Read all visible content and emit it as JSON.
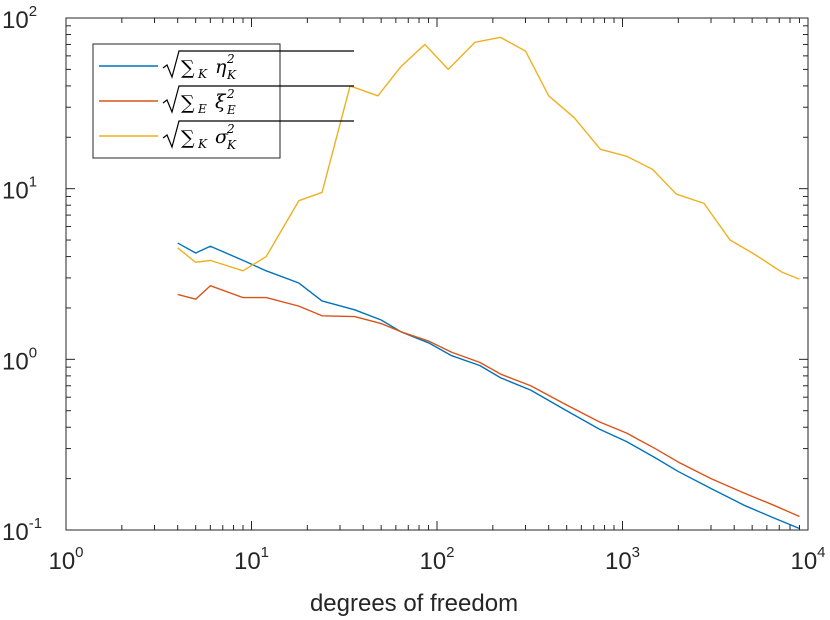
{
  "chart_data": {
    "type": "line",
    "xscale": "log",
    "yscale": "log",
    "xlim": [
      1,
      10000
    ],
    "ylim": [
      0.1,
      100
    ],
    "xlabel": "degrees of freedom",
    "ylabel": "",
    "title": "",
    "grid": false,
    "legend_position": "top-left",
    "x_ticks": [
      {
        "base": "10",
        "exp": "0",
        "value": 1
      },
      {
        "base": "10",
        "exp": "1",
        "value": 10
      },
      {
        "base": "10",
        "exp": "2",
        "value": 100
      },
      {
        "base": "10",
        "exp": "3",
        "value": 1000
      },
      {
        "base": "10",
        "exp": "4",
        "value": 10000
      }
    ],
    "y_ticks": [
      {
        "base": "10",
        "exp": "-1",
        "value": 0.1
      },
      {
        "base": "10",
        "exp": "0",
        "value": 1
      },
      {
        "base": "10",
        "exp": "1",
        "value": 10
      },
      {
        "base": "10",
        "exp": "2",
        "value": 100
      }
    ],
    "series": [
      {
        "name": "√Σ_K η_K²",
        "legend": {
          "sum_sub": "K",
          "var": "η",
          "var_sub": "K",
          "var_sup": "2"
        },
        "color": "#0072BD",
        "x": [
          4,
          5,
          6,
          9,
          12,
          18,
          24,
          36,
          50,
          64,
          90,
          120,
          170,
          220,
          320,
          500,
          750,
          1050,
          1500,
          2000,
          3000,
          4500,
          6500,
          9000
        ],
        "y": [
          4.8,
          4.2,
          4.6,
          3.8,
          3.3,
          2.8,
          2.2,
          1.95,
          1.7,
          1.45,
          1.25,
          1.05,
          0.92,
          0.78,
          0.66,
          0.5,
          0.39,
          0.33,
          0.265,
          0.22,
          0.175,
          0.14,
          0.118,
          0.102
        ]
      },
      {
        "name": "√Σ_E ξ_E²",
        "legend": {
          "sum_sub": "E",
          "var": "ξ",
          "var_sub": "E",
          "var_sup": "2"
        },
        "color": "#D95319",
        "x": [
          4,
          5,
          6,
          9,
          12,
          18,
          24,
          36,
          50,
          64,
          90,
          120,
          170,
          220,
          320,
          500,
          750,
          1050,
          1500,
          2000,
          3000,
          4500,
          6500,
          9000
        ],
        "y": [
          2.4,
          2.25,
          2.7,
          2.3,
          2.3,
          2.05,
          1.8,
          1.78,
          1.62,
          1.45,
          1.28,
          1.1,
          0.96,
          0.82,
          0.7,
          0.54,
          0.43,
          0.37,
          0.3,
          0.25,
          0.2,
          0.165,
          0.14,
          0.12
        ]
      },
      {
        "name": "√Σ_K σ_K²",
        "legend": {
          "sum_sub": "K",
          "var": "σ",
          "var_sub": "K",
          "var_sup": "2"
        },
        "color": "#EDB120",
        "x": [
          4,
          5,
          6,
          9,
          12,
          18,
          24,
          34,
          48,
          64,
          86,
          115,
          160,
          220,
          300,
          400,
          550,
          760,
          1050,
          1450,
          1950,
          2750,
          3800,
          5200,
          7200,
          9000
        ],
        "y": [
          4.5,
          3.7,
          3.8,
          3.3,
          4.0,
          8.5,
          9.5,
          40,
          35,
          52,
          70,
          50,
          72,
          77,
          64,
          35,
          26,
          17,
          15.5,
          13,
          9.3,
          8.2,
          5.0,
          4.1,
          3.25,
          2.95
        ]
      }
    ]
  }
}
